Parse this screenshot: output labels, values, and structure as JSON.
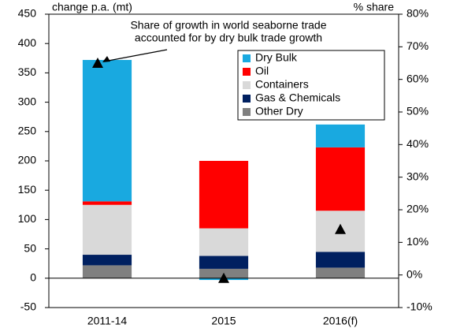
{
  "chart_data": {
    "type": "bar",
    "stacked": true,
    "ylabel": "change p.a. (mt)",
    "y2label": "% share",
    "annotation": [
      "Share of growth in  world seaborne trade",
      "accounted for by dry bulk trade growth"
    ],
    "categories": [
      "2011-14",
      "2015",
      "2016(f)"
    ],
    "series": [
      {
        "name": "Dry Bulk",
        "color": "#19a9e0",
        "values": [
          241,
          -3,
          39
        ]
      },
      {
        "name": "Oil",
        "color": "#ff0000",
        "values": [
          6,
          115,
          108
        ]
      },
      {
        "name": "Containers",
        "color": "#d9d9d9",
        "values": [
          85,
          47,
          70
        ]
      },
      {
        "name": "Gas & Chemicals",
        "color": "#002060",
        "values": [
          18,
          22,
          27
        ]
      },
      {
        "name": "Other Dry",
        "color": "#808080",
        "values": [
          22,
          16,
          18
        ]
      }
    ],
    "markers": {
      "axis": "y2",
      "color": "#000000",
      "values": [
        65,
        -1,
        14
      ]
    },
    "ylim": [
      -50,
      450
    ],
    "yticks": [
      -50,
      0,
      50,
      100,
      150,
      200,
      250,
      300,
      350,
      400,
      450
    ],
    "y2lim": [
      -10,
      80
    ],
    "y2ticks": [
      {
        "value": -10,
        "label": "-10%"
      },
      {
        "value": 0,
        "label": "0%"
      },
      {
        "value": 10,
        "label": "10%"
      },
      {
        "value": 20,
        "label": "20%"
      },
      {
        "value": 30,
        "label": "30%"
      },
      {
        "value": 40,
        "label": "40%"
      },
      {
        "value": 50,
        "label": "50%"
      },
      {
        "value": 60,
        "label": "60%"
      },
      {
        "value": 70,
        "label": "70%"
      },
      {
        "value": 80,
        "label": "80%"
      }
    ],
    "legend": "upper right"
  }
}
